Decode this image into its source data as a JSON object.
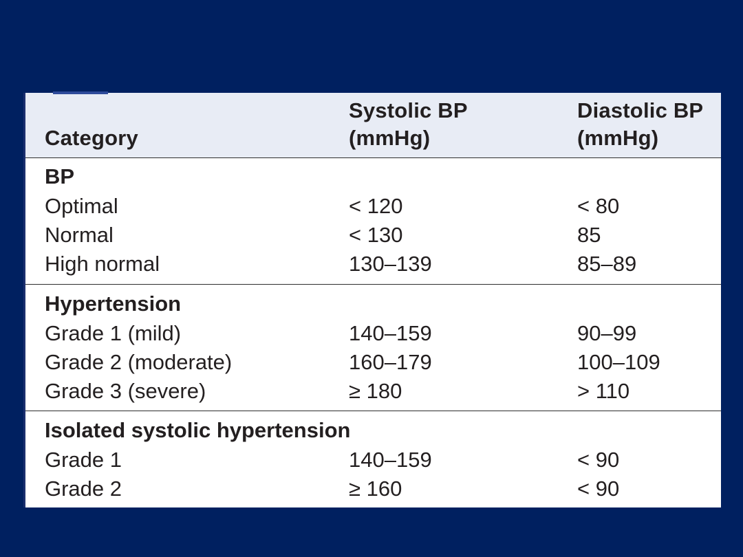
{
  "table": {
    "headers": {
      "category": "Category",
      "systolic_line1": "Systolic BP",
      "systolic_line2": "(mmHg)",
      "diastolic_line1": "Diastolic BP",
      "diastolic_line2": "(mmHg)"
    },
    "sections": [
      {
        "title": "BP",
        "rows": [
          {
            "category": "Optimal",
            "systolic": "< 120",
            "diastolic": "< 80"
          },
          {
            "category": "Normal",
            "systolic": "< 130",
            "diastolic": "85"
          },
          {
            "category": "High normal",
            "systolic": "130–139",
            "diastolic": "85–89"
          }
        ]
      },
      {
        "title": "Hypertension",
        "rows": [
          {
            "category": "Grade 1 (mild)",
            "systolic": "140–159",
            "diastolic": "90–99"
          },
          {
            "category": "Grade 2 (moderate)",
            "systolic": "160–179",
            "diastolic": "100–109"
          },
          {
            "category": "Grade 3 (severe)",
            "systolic": "≥ 180",
            "diastolic": "> 110"
          }
        ]
      },
      {
        "title": "Isolated systolic hypertension",
        "rows": [
          {
            "category": "Grade 1",
            "systolic": "140–159",
            "diastolic": "< 90"
          },
          {
            "category": "Grade 2",
            "systolic": "≥ 160",
            "diastolic": "< 90"
          }
        ]
      }
    ]
  },
  "colors": {
    "background": "#002060",
    "header_background": "#e8ecf5",
    "text": "#231f20"
  }
}
